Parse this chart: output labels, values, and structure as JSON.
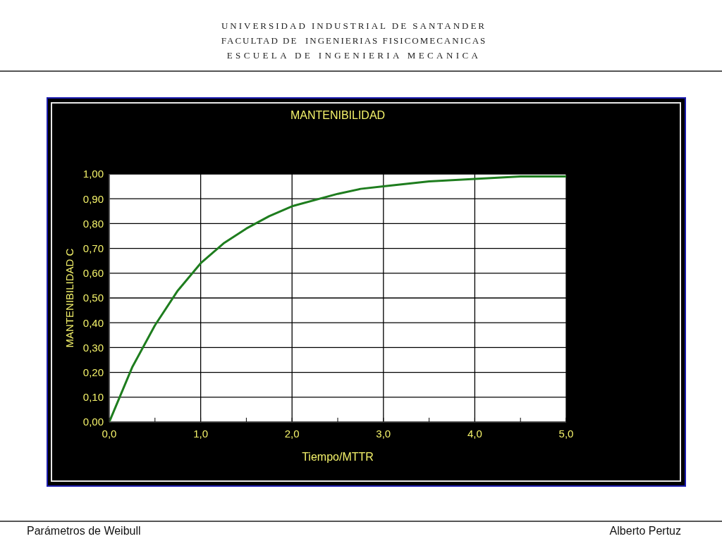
{
  "chart_data": {
    "type": "line",
    "title": "MANTENIBILIDAD",
    "xlabel": "Tiempo/MTTR",
    "ylabel": "MANTENIBILIDAD  C",
    "x": [
      0,
      0.25,
      0.5,
      0.75,
      1.0,
      1.25,
      1.5,
      1.75,
      2.0,
      2.5,
      2.75,
      3.0,
      3.25,
      3.5,
      4.0,
      4.5,
      5.0
    ],
    "series": [
      {
        "color": "#1e7d1e",
        "values": [
          0,
          0.22,
          0.39,
          0.53,
          0.64,
          0.72,
          0.78,
          0.83,
          0.87,
          0.92,
          0.94,
          0.95,
          0.96,
          0.97,
          0.98,
          0.99,
          0.99
        ]
      }
    ],
    "xlim": [
      0,
      5
    ],
    "ylim": [
      0,
      1
    ],
    "xticks": [
      {
        "value": 0,
        "label": "0,0"
      },
      {
        "value": 0.5,
        "label": null
      },
      {
        "value": 1,
        "label": "1,0"
      },
      {
        "value": 1.5,
        "label": null
      },
      {
        "value": 2,
        "label": "2,0"
      },
      {
        "value": 2.5,
        "label": null
      },
      {
        "value": 3,
        "label": "3,0"
      },
      {
        "value": 3.5,
        "label": null
      },
      {
        "value": 4,
        "label": "4,0"
      },
      {
        "value": 4.5,
        "label": null
      },
      {
        "value": 5,
        "label": "5,0"
      }
    ],
    "yticks": [
      {
        "value": 0,
        "label": "0,00"
      },
      {
        "value": 0.1,
        "label": "0,10"
      },
      {
        "value": 0.2,
        "label": "0,20"
      },
      {
        "value": 0.3,
        "label": "0,30"
      },
      {
        "value": 0.4,
        "label": "0,40"
      },
      {
        "value": 0.5,
        "label": "0,50"
      },
      {
        "value": 0.6,
        "label": "0,60"
      },
      {
        "value": 0.7,
        "label": "0,70"
      },
      {
        "value": 0.8,
        "label": "0,80"
      },
      {
        "value": 0.9,
        "label": "0,90"
      },
      {
        "value": 1,
        "label": "1,00"
      }
    ],
    "grid": true,
    "marker": "none",
    "line_style": "solid",
    "annotations": [
      "UNIVERSIDAD INDUSTRIAL DE SANTANDER",
      "FACULTAD DE  INGENIERIAS FISICOMECANICAS",
      "ESCUELA DE INGENIERIA MECANICA",
      "Parámetros de Weibull",
      "Alberto Pertuz"
    ]
  }
}
